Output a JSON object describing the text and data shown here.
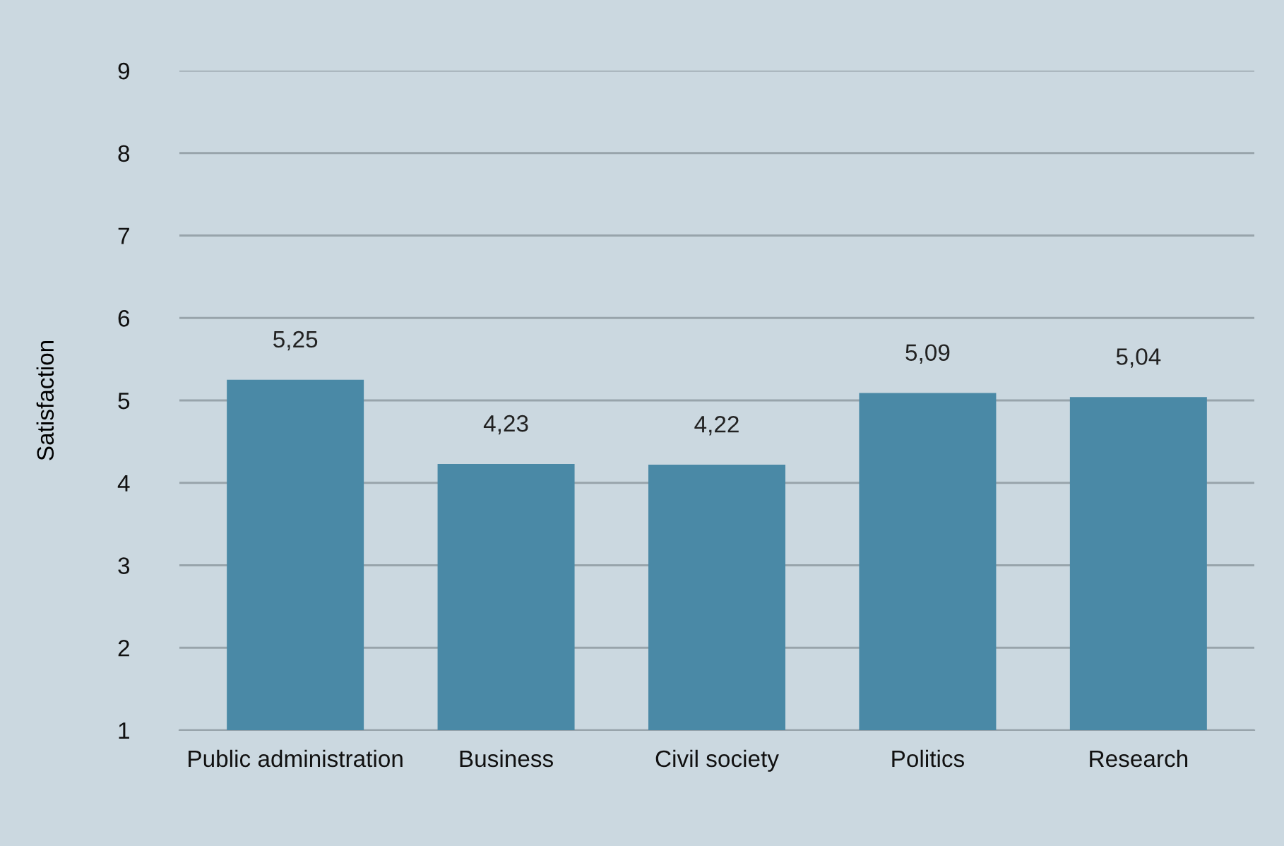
{
  "chart_data": {
    "type": "bar",
    "ylabel": "Satisfaction",
    "categories": [
      "Public administration",
      "Business",
      "Civil society",
      "Politics",
      "Research"
    ],
    "values": [
      5.25,
      4.23,
      4.22,
      5.09,
      5.04
    ],
    "value_labels": [
      "5,25",
      "4,23",
      "4,22",
      "5,09",
      "5,04"
    ],
    "color": "#4a89a6",
    "ylim": [
      1,
      9
    ],
    "yticks": [
      1,
      2,
      3,
      4,
      5,
      6,
      7,
      8,
      9
    ],
    "grid": "y",
    "legend": false
  }
}
